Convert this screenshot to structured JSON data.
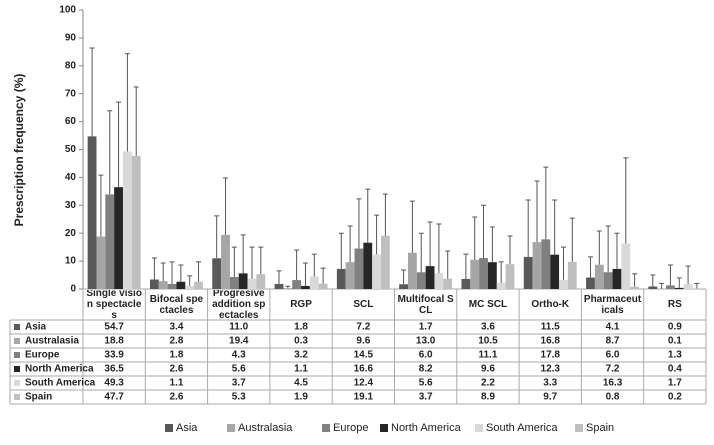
{
  "chart_data": {
    "type": "bar",
    "y_label": "Prescription frequency (%)",
    "categories": [
      "Single vision spectacles",
      "Bifocal spectacles",
      "Progresive addition spectacles",
      "RGP",
      "SCL",
      "Multifocal SCL",
      "MC SCL",
      "Ortho-K",
      "Pharmaceuticals",
      "RS"
    ],
    "ylim": [
      0,
      100
    ],
    "yticks": [
      0,
      10,
      20,
      30,
      40,
      50,
      60,
      70,
      80,
      90,
      100
    ],
    "grid": false,
    "legend": "bottom",
    "series": [
      {
        "name": "Asia",
        "color": "#595959",
        "values": [
          54.7,
          3.4,
          11,
          1.8,
          7.2,
          1.7,
          3.6,
          11.5,
          4.1,
          0.9
        ],
        "value_labels": [
          "54.7",
          "3.4",
          "11.0",
          "1.8",
          "7.2",
          "1.7",
          "3.6",
          "11.5",
          "4.1",
          "0.9"
        ],
        "errors": [
          31.7,
          7.7,
          15.2,
          4.7,
          12.8,
          5.1,
          8.9,
          20.4,
          7.4,
          4.1
        ]
      },
      {
        "name": "Australasia",
        "color": "#a6a6a6",
        "values": [
          18.8,
          2.8,
          19.4,
          0.3,
          9.6,
          13,
          10.5,
          16.8,
          8.7,
          0.1
        ],
        "value_labels": [
          "18.8",
          "2.8",
          "19.4",
          "0.3",
          "9.6",
          "13.0",
          "10.5",
          "16.8",
          "8.7",
          "0.1"
        ],
        "errors": [
          22,
          6.5,
          20.4,
          0.7,
          13,
          18.5,
          15.3,
          21.9,
          12.1,
          1.9
        ]
      },
      {
        "name": "Europe",
        "color": "#808080",
        "values": [
          33.9,
          1.8,
          4.3,
          3.2,
          14.5,
          6,
          11.1,
          17.8,
          6,
          1.3
        ],
        "value_labels": [
          "33.9",
          "1.8",
          "4.3",
          "3.2",
          "14.5",
          "6.0",
          "11.1",
          "17.8",
          "6.0",
          "1.3"
        ],
        "errors": [
          30,
          7.9,
          10.7,
          10.8,
          17.8,
          14,
          18.9,
          25.9,
          16.6,
          7.3
        ]
      },
      {
        "name": "North America",
        "color": "#262626",
        "values": [
          36.5,
          2.6,
          5.6,
          1.1,
          16.6,
          8.2,
          9.6,
          12.3,
          7.2,
          0.4
        ],
        "value_labels": [
          "36.5",
          "2.6",
          "5.6",
          "1.1",
          "16.6",
          "8.2",
          "9.6",
          "12.3",
          "7.2",
          "0.4"
        ],
        "errors": [
          30.5,
          6,
          13.8,
          8.2,
          19.2,
          15.8,
          12.6,
          19.6,
          12.8,
          3.6
        ]
      },
      {
        "name": "South America",
        "color": "#d9d9d9",
        "values": [
          49.3,
          1.1,
          3.7,
          4.5,
          12.4,
          5.6,
          2.2,
          3.3,
          16.3,
          1.7
        ],
        "value_labels": [
          "49.3",
          "1.1",
          "3.7",
          "4.5",
          "12.4",
          "5.6",
          "2.2",
          "3.3",
          "16.3",
          "1.7"
        ],
        "errors": [
          35,
          3.6,
          11.3,
          8,
          14.1,
          17.7,
          7.5,
          11.7,
          30.7,
          6.5
        ]
      },
      {
        "name": "Spain",
        "color": "#bfbfbf",
        "values": [
          47.7,
          2.6,
          5.3,
          1.9,
          19.1,
          3.7,
          8.9,
          9.7,
          0.8,
          0.2
        ],
        "value_labels": [
          "47.7",
          "2.6",
          "5.3",
          "1.9",
          "19.1",
          "3.7",
          "8.9",
          "9.7",
          "0.8",
          "0.2"
        ],
        "errors": [
          24.7,
          7.1,
          9.7,
          5.6,
          14.9,
          9.9,
          10.1,
          15.7,
          4.6,
          1.8
        ]
      }
    ]
  }
}
